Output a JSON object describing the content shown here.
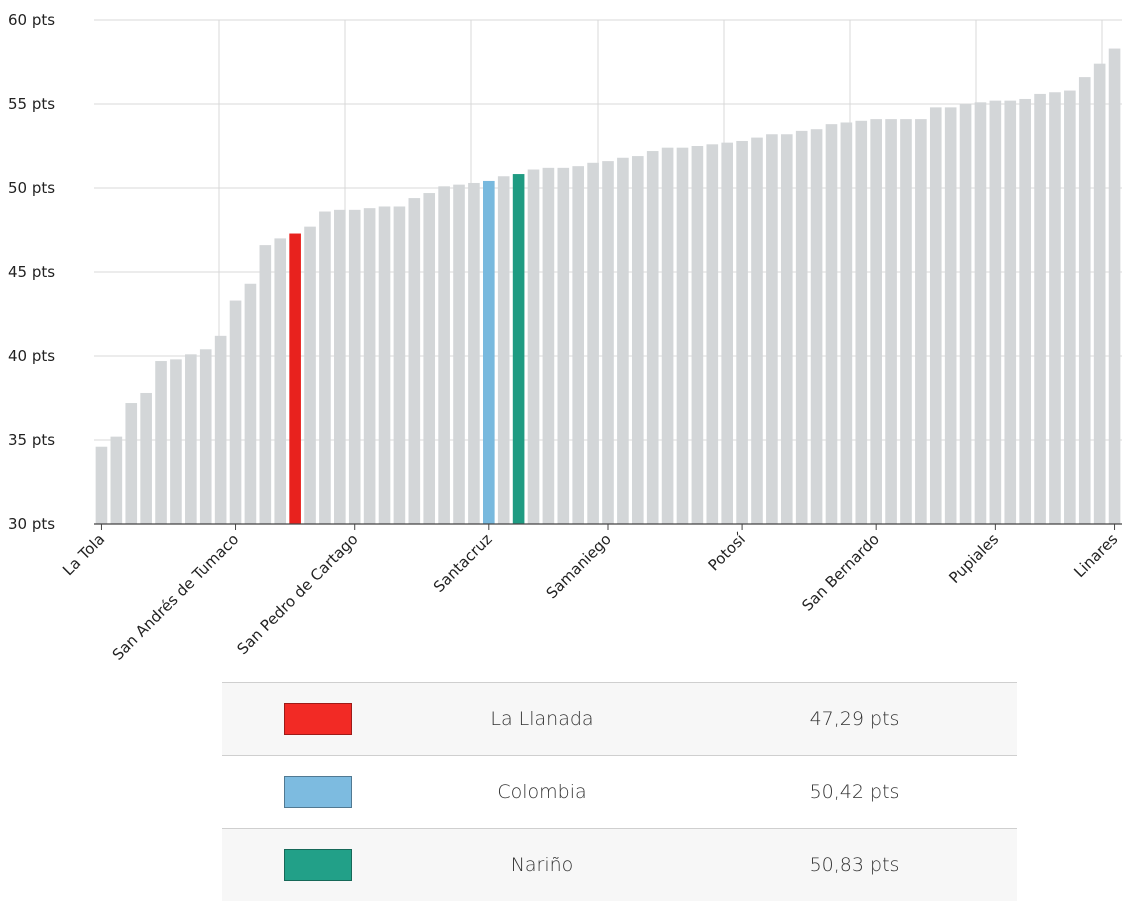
{
  "chart_data": {
    "type": "bar",
    "y_tick_labels": [
      "60 pts",
      "55 pts",
      "50 pts",
      "45 pts",
      "40 pts",
      "35 pts",
      "30 pts"
    ],
    "ylim": [
      30,
      60
    ],
    "x_tick_labels": [
      "La Tola",
      "San Andrés de Tumaco",
      "San Pedro de Cartago",
      "Santacruz",
      "Samaniego",
      "Potosí",
      "San Bernardo",
      "Pupiales",
      "Linares"
    ],
    "grid": true,
    "values": [
      34.6,
      35.2,
      37.2,
      37.8,
      39.7,
      39.8,
      40.1,
      40.4,
      41.2,
      43.3,
      44.3,
      46.6,
      47.0,
      47.29,
      47.7,
      48.6,
      48.7,
      48.7,
      48.8,
      48.9,
      48.9,
      49.4,
      49.7,
      50.1,
      50.2,
      50.3,
      50.42,
      50.7,
      50.83,
      51.1,
      51.2,
      51.2,
      51.3,
      51.5,
      51.6,
      51.8,
      51.9,
      52.2,
      52.4,
      52.4,
      52.5,
      52.6,
      52.7,
      52.8,
      53.0,
      53.2,
      53.2,
      53.4,
      53.5,
      53.8,
      53.9,
      54.0,
      54.1,
      54.1,
      54.1,
      54.1,
      54.8,
      54.8,
      55.0,
      55.1,
      55.2,
      55.2,
      55.3,
      55.6,
      55.7,
      55.8,
      56.6,
      57.4,
      58.3
    ],
    "highlights": [
      {
        "index": 13,
        "color": "#e8221e"
      },
      {
        "index": 26,
        "color": "#78b9de"
      },
      {
        "index": 28,
        "color": "#1f9b82"
      }
    ],
    "default_bar_color": "#d3d6d8",
    "legend": [
      {
        "name": "La Llanada",
        "value": "47,29 pts",
        "color": "#f22a25"
      },
      {
        "name": "Colombia",
        "value": "50,42 pts",
        "color": "#7dbbe0"
      },
      {
        "name": "Nariño",
        "value": "50,83 pts",
        "color": "#22a088"
      }
    ]
  }
}
